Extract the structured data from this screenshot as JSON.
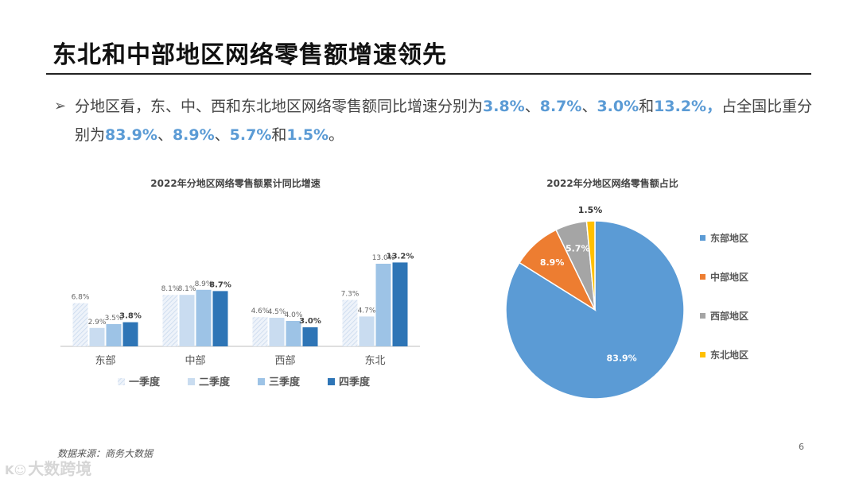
{
  "slide": {
    "title": "东北和中部地区网络零售额增速领先",
    "bullet_arrow": "➢",
    "bullet_parts": [
      {
        "t": "分地区看，东、中、西和东北地区网络零售额同比增速分别为",
        "hl": false
      },
      {
        "t": "3.8%",
        "hl": true
      },
      {
        "t": "、",
        "hl": false
      },
      {
        "t": "8.7%",
        "hl": true
      },
      {
        "t": "、",
        "hl": false
      },
      {
        "t": "3.0%",
        "hl": true
      },
      {
        "t": "和",
        "hl": false
      },
      {
        "t": "13.2%，",
        "hl": true
      },
      {
        "t": "占全国比重分别为",
        "hl": false
      },
      {
        "t": "83.9%",
        "hl": true
      },
      {
        "t": "、",
        "hl": false
      },
      {
        "t": "8.9%",
        "hl": true
      },
      {
        "t": "、",
        "hl": false
      },
      {
        "t": "5.7%",
        "hl": true
      },
      {
        "t": "和",
        "hl": false
      },
      {
        "t": "1.5%",
        "hl": true
      },
      {
        "t": "。",
        "hl": false
      }
    ],
    "source": "数据来源：商务大数据",
    "page_number": "6",
    "watermark": "大数跨境",
    "watermark_logo": "K☺"
  },
  "chart_data": [
    {
      "type": "bar",
      "title": "2022年分地区网络零售额累计同比增速",
      "categories": [
        "东部",
        "中部",
        "西部",
        "东北"
      ],
      "series": [
        {
          "name": "一季度",
          "values": [
            6.8,
            8.1,
            4.6,
            7.3
          ],
          "labels": [
            "6.8%",
            "8.1%",
            "4.6%",
            "7.3%"
          ],
          "color": "#dae6f3",
          "pattern": "hatch"
        },
        {
          "name": "二季度",
          "values": [
            2.9,
            8.1,
            4.5,
            4.7
          ],
          "labels": [
            "2.9%",
            "8.1%",
            "4.5%",
            "4.7%"
          ],
          "color": "#c9dcf0"
        },
        {
          "name": "三季度",
          "values": [
            3.5,
            8.9,
            4.0,
            13.0
          ],
          "labels": [
            "3.5%",
            "8.9%",
            "4.0%",
            "13.0%"
          ],
          "color": "#9dc3e6"
        },
        {
          "name": "四季度",
          "values": [
            3.8,
            8.7,
            3.0,
            13.2
          ],
          "labels": [
            "3.8%",
            "8.7%",
            "3.0%",
            "13.2%"
          ],
          "color": "#2e75b6",
          "bold_labels": true
        }
      ],
      "ylim": [
        0,
        14
      ],
      "grid": false,
      "legend_position": "bottom"
    },
    {
      "type": "pie",
      "title": "2022年分地区网络零售额占比",
      "slices": [
        {
          "name": "东部地区",
          "value": 83.9,
          "label": "83.9%",
          "color": "#5b9bd5"
        },
        {
          "name": "中部地区",
          "value": 8.9,
          "label": "8.9%",
          "color": "#ed7d31"
        },
        {
          "name": "西部地区",
          "value": 5.7,
          "label": "5.7%",
          "color": "#a5a5a5"
        },
        {
          "name": "东北地区",
          "value": 1.5,
          "label": "1.5%",
          "color": "#ffc000"
        }
      ],
      "legend_position": "right"
    }
  ]
}
